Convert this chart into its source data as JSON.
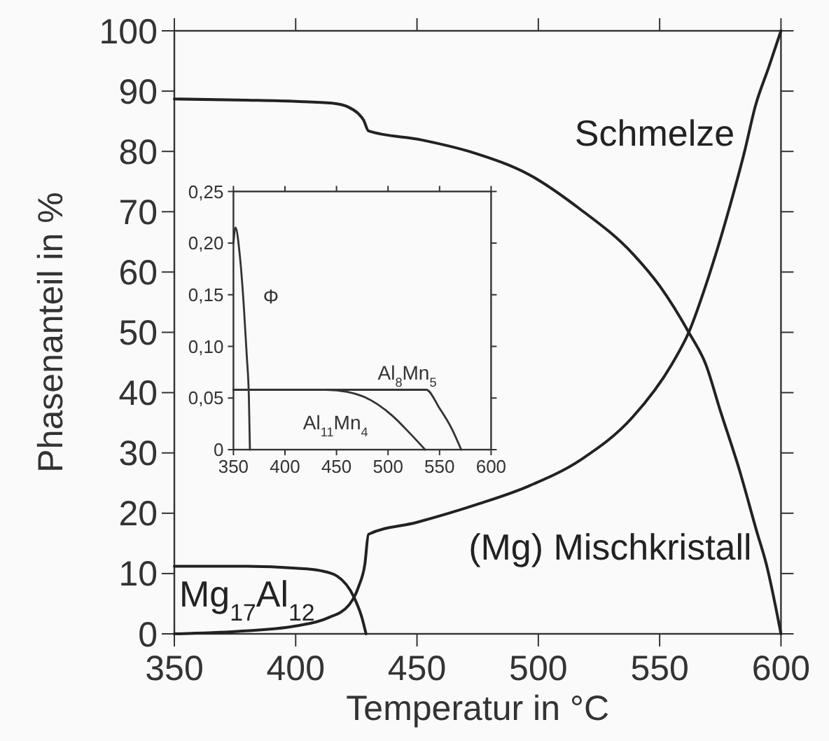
{
  "chart_data": [
    {
      "type": "line",
      "xlabel": "Temperatur in °C",
      "ylabel": "Phasenanteil in %",
      "xlim": [
        350,
        600
      ],
      "ylim": [
        0,
        100
      ],
      "xticks": [
        350,
        400,
        450,
        500,
        550,
        600
      ],
      "yticks": [
        0,
        10,
        20,
        30,
        40,
        50,
        60,
        70,
        80,
        90,
        100
      ],
      "grid": false,
      "marker": "none",
      "line_style": "solid",
      "series": [
        {
          "name": "Schmelze",
          "color": "#222222",
          "x": [
            350,
            376,
            400,
            413,
            422,
            426,
            428.5,
            430,
            450,
            475,
            496,
            518,
            539,
            555,
            562,
            570,
            579,
            585,
            589.5,
            595,
            600
          ],
          "values": [
            0,
            0.4,
            1.3,
            2.6,
            4.8,
            7.9,
            11.5,
            16.5,
            18.5,
            21.5,
            24.5,
            29,
            36,
            44.7,
            50,
            59,
            71,
            80,
            87.6,
            94,
            100
          ]
        },
        {
          "name": "(Mg) Mischkristall",
          "color": "#222222",
          "x": [
            350,
            380,
            400,
            415,
            422,
            426,
            428,
            430,
            452,
            474,
            496,
            517,
            539,
            550,
            562,
            569,
            575,
            583,
            590,
            594,
            600
          ],
          "values": [
            88.7,
            88.5,
            88.3,
            88,
            87.3,
            86.2,
            85.2,
            83.4,
            81.9,
            79.7,
            76.2,
            70.5,
            63,
            57.7,
            50,
            44.7,
            37,
            27,
            17,
            11.5,
            0
          ]
        },
        {
          "name": "Mg$_{17}$Al$_{12}$",
          "color": "#222222",
          "x": [
            350,
            380,
            400,
            410,
            417,
            424,
            427.3,
            429
          ],
          "values": [
            11.2,
            11.2,
            10.9,
            10.5,
            9.6,
            6.1,
            2.7,
            0
          ]
        }
      ]
    },
    {
      "type": "line",
      "xlim": [
        350,
        600
      ],
      "ylim": [
        0,
        0.25
      ],
      "xticks": [
        350,
        400,
        450,
        500,
        550,
        600
      ],
      "yticks": [
        0,
        {
          "value": 0.05,
          "label": "0,05"
        },
        {
          "value": 0.1,
          "label": "0,10"
        },
        {
          "value": 0.15,
          "label": "0,15"
        },
        {
          "value": 0.2,
          "label": "0,20"
        },
        {
          "value": 0.25,
          "label": "0,25"
        }
      ],
      "grid": false,
      "marker": "none",
      "line_style": "solid",
      "series": [
        {
          "name": "Φ",
          "color": "#333333",
          "x": [
            350,
            352,
            356,
            360,
            363,
            365,
            366
          ],
          "values": [
            0.2,
            0.215,
            0.19,
            0.14,
            0.09,
            0.05,
            0
          ]
        },
        {
          "name": "Al$_{8}$Mn$_{5}$",
          "color": "#333333",
          "x": [
            350,
            450,
            537,
            550,
            562,
            571
          ],
          "values": [
            0.058,
            0.058,
            0.058,
            0.04,
            0.02,
            0
          ]
        },
        {
          "name": "Al$_{11}$Mn$_{4}$",
          "color": "#333333",
          "x": [
            350,
            440,
            460,
            477,
            504,
            522,
            536
          ],
          "values": [
            0.058,
            0.058,
            0.056,
            0.051,
            0.033,
            0.015,
            0
          ]
        }
      ]
    }
  ]
}
